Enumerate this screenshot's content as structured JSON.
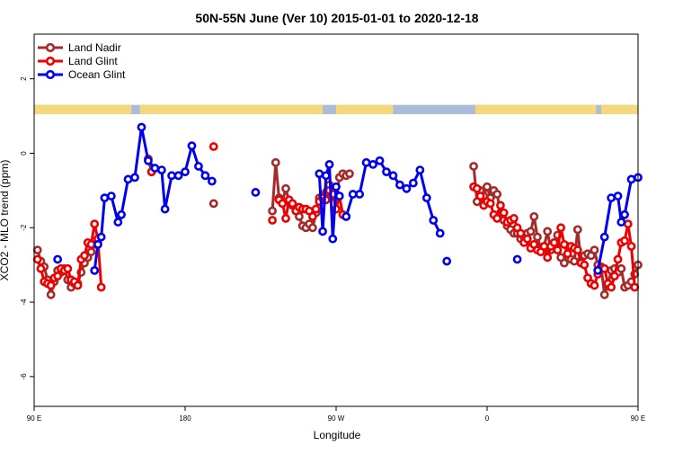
{
  "chart_data": {
    "type": "line",
    "title": "50N-55N June (Ver 10)   2015-01-01 to 2020-12-18",
    "xlabel": "Longitude",
    "ylabel": "XCO2 - MLO trend (ppm)",
    "xlim": [
      90,
      450
    ],
    "ylim": [
      -6.8,
      3.2
    ],
    "x_ticks": [
      {
        "value": 90,
        "label": "90 E"
      },
      {
        "value": 180,
        "label": "180"
      },
      {
        "value": 270,
        "label": "90 W"
      },
      {
        "value": 360,
        "label": "0"
      },
      {
        "value": 450,
        "label": "90 E"
      },
      {
        "value": 540,
        "label": "180"
      }
    ],
    "y_ticks": [
      {
        "value": 2,
        "label": "2"
      },
      {
        "value": 0,
        "label": "0"
      },
      {
        "value": -2,
        "label": "-2"
      },
      {
        "value": -4,
        "label": "-4"
      },
      {
        "value": -6,
        "label": "-6"
      }
    ],
    "grid": false,
    "legend": {
      "position": "top-left"
    },
    "land_strip": {
      "y_range": [
        1.05,
        1.3
      ],
      "ocean_color": "#a9bcd9",
      "land_color": "#f5d77c",
      "land_spans": [
        [
          90,
          148
        ],
        [
          153,
          262
        ],
        [
          270,
          304
        ],
        [
          353,
          425
        ],
        [
          428,
          527
        ],
        [
          533,
          540
        ]
      ]
    },
    "series": [
      {
        "name": "Land Nadir",
        "color": "#a52a2a",
        "points": [
          [
            92,
            -2.6
          ],
          [
            94,
            -2.9
          ],
          [
            96,
            -3.05
          ],
          [
            98,
            -3.4
          ],
          [
            100,
            -3.8
          ],
          [
            102,
            -3.45
          ],
          [
            104,
            -3.15
          ],
          [
            106,
            -3.2
          ],
          [
            108,
            -3.1
          ],
          [
            110,
            -3.4
          ],
          [
            112,
            -3.6
          ],
          [
            114,
            -3.5
          ],
          [
            116,
            -3.5
          ],
          [
            118,
            -3.2
          ],
          [
            120,
            -2.95
          ],
          [
            122,
            -2.8
          ],
          [
            124,
            -2.65
          ],
          [
            126,
            -2.45
          ],
          [
            128,
            -2.4
          ],
          null,
          [
            158,
            -0.15
          ],
          [
            160,
            -0.5
          ],
          null,
          [
            197,
            -1.35
          ],
          null,
          [
            232,
            -1.55
          ],
          [
            234,
            -0.25
          ],
          [
            236,
            -1.2
          ],
          [
            238,
            -1.3
          ],
          [
            240,
            -0.95
          ],
          [
            242,
            -1.3
          ],
          [
            244,
            -1.4
          ],
          [
            246,
            -1.45
          ],
          [
            248,
            -1.7
          ],
          [
            250,
            -1.95
          ],
          [
            252,
            -2.0
          ],
          [
            254,
            -1.9
          ],
          [
            256,
            -2.0
          ],
          [
            258,
            -1.6
          ],
          [
            260,
            -1.2
          ],
          [
            262,
            -1.15
          ],
          [
            264,
            -1.05
          ],
          [
            266,
            -0.85
          ],
          [
            268,
            -0.95
          ],
          [
            270,
            -1.2
          ],
          [
            272,
            -0.65
          ],
          [
            274,
            -0.55
          ],
          [
            276,
            -0.6
          ],
          [
            278,
            -0.55
          ],
          null,
          [
            352,
            -0.35
          ],
          [
            354,
            -1.3
          ],
          [
            356,
            -1.0
          ],
          [
            358,
            -1.15
          ],
          [
            360,
            -0.9
          ],
          [
            362,
            -1.2
          ],
          [
            364,
            -1.0
          ],
          [
            366,
            -1.1
          ],
          [
            368,
            -1.6
          ],
          [
            370,
            -1.8
          ],
          [
            372,
            -1.95
          ],
          [
            374,
            -2.05
          ],
          [
            376,
            -2.15
          ],
          [
            378,
            -2.15
          ],
          [
            380,
            -2.3
          ],
          [
            382,
            -2.25
          ],
          [
            384,
            -2.15
          ],
          [
            386,
            -2.1
          ],
          [
            388,
            -1.7
          ],
          [
            390,
            -2.25
          ],
          [
            392,
            -2.55
          ],
          [
            394,
            -2.5
          ],
          [
            396,
            -2.1
          ],
          [
            398,
            -2.6
          ],
          [
            400,
            -2.45
          ],
          [
            402,
            -2.2
          ],
          [
            404,
            -2.8
          ],
          [
            406,
            -2.95
          ],
          [
            408,
            -2.5
          ],
          [
            410,
            -2.85
          ],
          [
            412,
            -2.9
          ],
          [
            414,
            -2.05
          ],
          [
            416,
            -2.9
          ],
          [
            418,
            -2.75
          ],
          [
            420,
            -2.7
          ],
          [
            422,
            -2.75
          ],
          [
            424,
            -2.6
          ],
          [
            426,
            -3.0
          ],
          [
            428,
            -3.05
          ],
          [
            430,
            -3.8
          ],
          [
            432,
            -3.55
          ],
          [
            434,
            -3.15
          ],
          [
            436,
            -3.1
          ],
          [
            438,
            -3.2
          ],
          [
            440,
            -3.1
          ],
          [
            442,
            -3.6
          ],
          [
            444,
            -3.55
          ],
          [
            446,
            -3.45
          ],
          [
            448,
            -3.25
          ],
          [
            450,
            -3.0
          ],
          [
            452,
            -2.85
          ],
          [
            454,
            -2.75
          ],
          [
            456,
            -2.6
          ],
          [
            458,
            -2.6
          ],
          null,
          [
            470,
            -0.15
          ],
          [
            472,
            -1.8
          ]
        ]
      },
      {
        "name": "Land Glint",
        "color": "#ee0000",
        "points": [
          [
            92,
            -2.85
          ],
          [
            94,
            -3.1
          ],
          [
            96,
            -3.45
          ],
          [
            98,
            -3.5
          ],
          [
            100,
            -3.55
          ],
          [
            102,
            -3.35
          ],
          [
            104,
            -3.3
          ],
          [
            106,
            -3.1
          ],
          [
            108,
            -3.15
          ],
          [
            110,
            -3.1
          ],
          [
            112,
            -3.4
          ],
          [
            114,
            -3.45
          ],
          [
            116,
            -3.55
          ],
          [
            118,
            -2.85
          ],
          [
            120,
            -2.75
          ],
          [
            122,
            -2.4
          ],
          [
            124,
            -2.45
          ],
          [
            126,
            -1.9
          ],
          [
            128,
            -2.3
          ],
          [
            130,
            -3.6
          ],
          null,
          [
            160,
            -0.5
          ],
          null,
          [
            197,
            0.18
          ],
          null,
          [
            232,
            -1.8
          ],
          null,
          [
            236,
            -1.25
          ],
          [
            238,
            -1.35
          ],
          [
            240,
            -1.75
          ],
          [
            242,
            -1.25
          ],
          [
            244,
            -1.35
          ],
          [
            246,
            -1.55
          ],
          [
            248,
            -1.45
          ],
          [
            250,
            -1.5
          ],
          [
            252,
            -1.5
          ],
          [
            254,
            -1.55
          ],
          [
            256,
            -1.7
          ],
          [
            258,
            -1.5
          ],
          [
            260,
            -1.3
          ],
          [
            262,
            -1.2
          ],
          [
            264,
            -1.25
          ],
          [
            266,
            -1.0
          ],
          [
            268,
            -1.1
          ],
          [
            270,
            -1.5
          ],
          [
            272,
            -1.15
          ],
          [
            274,
            -1.65
          ],
          [
            276,
            -1.7
          ],
          null,
          [
            352,
            -0.9
          ],
          [
            354,
            -0.95
          ],
          [
            356,
            -1.15
          ],
          [
            358,
            -1.4
          ],
          [
            360,
            -1.3
          ],
          [
            362,
            -1.35
          ],
          [
            364,
            -1.65
          ],
          [
            366,
            -1.75
          ],
          [
            368,
            -1.4
          ],
          [
            370,
            -1.6
          ],
          [
            372,
            -1.85
          ],
          [
            374,
            -1.8
          ],
          [
            376,
            -1.75
          ],
          [
            378,
            -2.0
          ],
          [
            380,
            -2.15
          ],
          [
            382,
            -2.4
          ],
          [
            384,
            -2.3
          ],
          [
            386,
            -2.55
          ],
          [
            388,
            -2.45
          ],
          [
            390,
            -2.6
          ],
          [
            392,
            -2.65
          ],
          [
            394,
            -2.5
          ],
          [
            396,
            -2.8
          ],
          [
            398,
            -2.5
          ],
          [
            400,
            -2.4
          ],
          [
            402,
            -2.6
          ],
          [
            404,
            -2.0
          ],
          [
            406,
            -2.45
          ],
          [
            408,
            -2.7
          ],
          [
            410,
            -2.5
          ],
          [
            412,
            -2.55
          ],
          [
            414,
            -2.6
          ],
          [
            416,
            -2.95
          ],
          [
            418,
            -3.0
          ],
          [
            420,
            -3.35
          ],
          [
            422,
            -3.5
          ],
          [
            424,
            -3.55
          ],
          [
            426,
            -3.25
          ],
          [
            428,
            -3.1
          ],
          [
            430,
            -3.1
          ],
          [
            432,
            -3.5
          ],
          [
            434,
            -3.6
          ],
          [
            436,
            -3.3
          ],
          [
            438,
            -2.85
          ],
          [
            440,
            -2.4
          ],
          [
            442,
            -2.35
          ],
          [
            444,
            -1.9
          ],
          [
            446,
            -2.5
          ],
          [
            448,
            -3.6
          ],
          null,
          [
            472,
            -0.5
          ]
        ]
      },
      {
        "name": "Ocean Glint",
        "color": "#0000ee",
        "points": [
          [
            104,
            -2.85
          ],
          null,
          [
            126,
            -3.15
          ],
          [
            128,
            -2.45
          ],
          [
            130,
            -2.25
          ],
          [
            132,
            -1.2
          ],
          [
            136,
            -1.15
          ],
          [
            140,
            -1.85
          ],
          [
            142,
            -1.65
          ],
          [
            146,
            -0.7
          ],
          [
            150,
            -0.65
          ],
          [
            154,
            0.7
          ],
          [
            158,
            -0.2
          ],
          [
            162,
            -0.4
          ],
          [
            166,
            -0.45
          ],
          [
            168,
            -1.5
          ],
          [
            172,
            -0.6
          ],
          [
            176,
            -0.6
          ],
          [
            180,
            -0.5
          ],
          [
            184,
            0.2
          ],
          [
            188,
            -0.35
          ],
          [
            192,
            -0.6
          ],
          [
            196,
            -0.75
          ],
          null,
          [
            222,
            -1.05
          ],
          null,
          [
            260,
            -0.55
          ],
          [
            262,
            -2.1
          ],
          [
            264,
            -0.6
          ],
          [
            266,
            -0.3
          ],
          [
            268,
            -2.3
          ],
          [
            270,
            -0.9
          ],
          [
            272,
            -1.15
          ],
          null,
          [
            276,
            -1.7
          ],
          [
            280,
            -1.1
          ],
          [
            284,
            -1.1
          ],
          [
            288,
            -0.25
          ],
          [
            292,
            -0.3
          ],
          [
            296,
            -0.2
          ],
          [
            300,
            -0.5
          ],
          [
            304,
            -0.6
          ],
          [
            308,
            -0.85
          ],
          [
            312,
            -0.95
          ],
          [
            316,
            -0.8
          ],
          [
            320,
            -0.45
          ],
          [
            324,
            -1.2
          ],
          [
            328,
            -1.8
          ],
          [
            332,
            -2.15
          ],
          null,
          [
            336,
            -2.9
          ],
          null,
          [
            378,
            -2.85
          ],
          null,
          [
            426,
            -3.15
          ],
          [
            430,
            -2.25
          ],
          [
            434,
            -1.2
          ],
          [
            438,
            -1.15
          ],
          [
            440,
            -1.85
          ],
          [
            442,
            -1.65
          ],
          [
            446,
            -0.7
          ],
          [
            450,
            -0.65
          ],
          [
            454,
            0.7
          ]
        ]
      }
    ]
  }
}
